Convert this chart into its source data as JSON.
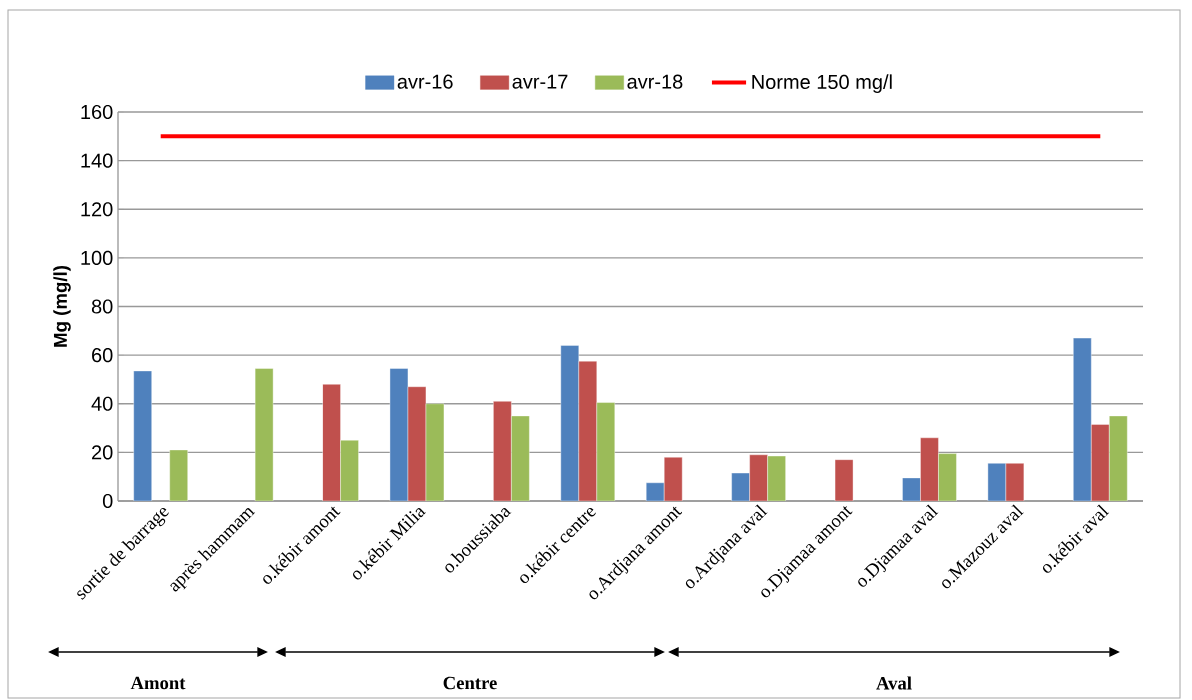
{
  "chart_data": {
    "type": "bar",
    "ylabel": "Mg (mg/l)",
    "categories": [
      "sortie de barrage",
      "après hammam",
      "o.kébir amont",
      "o.kébir Milia",
      "o.boussiaba",
      "o.kébir centre",
      "o.Ardjana amont",
      "o.Ardjana aval",
      "o.Djamaa amont",
      "o.Djamaa aval",
      "o.Mazouz aval",
      "o.kébir aval"
    ],
    "series": [
      {
        "name": "avr-16",
        "color": "#4f81bd",
        "values": [
          53.5,
          null,
          null,
          54.5,
          null,
          64,
          7.5,
          11.5,
          null,
          9.5,
          15.5,
          67
        ]
      },
      {
        "name": "avr-17",
        "color": "#c0504d",
        "values": [
          null,
          null,
          48,
          47,
          41,
          57.5,
          18,
          19,
          17,
          26,
          15.5,
          31.5
        ]
      },
      {
        "name": "avr-18",
        "color": "#9bbb59",
        "values": [
          21,
          54.5,
          25,
          40,
          35,
          40.5,
          null,
          18.5,
          null,
          19.5,
          null,
          35
        ]
      }
    ],
    "ref_lines": [
      {
        "axis": "y",
        "value": 150,
        "label": "Norme 150 mg/l",
        "color": "#ff0000"
      }
    ],
    "annotations": [
      "Amont",
      "Centre",
      "Aval"
    ],
    "ylim": [
      0,
      160
    ],
    "yticks": [
      0,
      20,
      40,
      60,
      80,
      100,
      120,
      140,
      160
    ],
    "grid": "y",
    "legend": "top"
  }
}
